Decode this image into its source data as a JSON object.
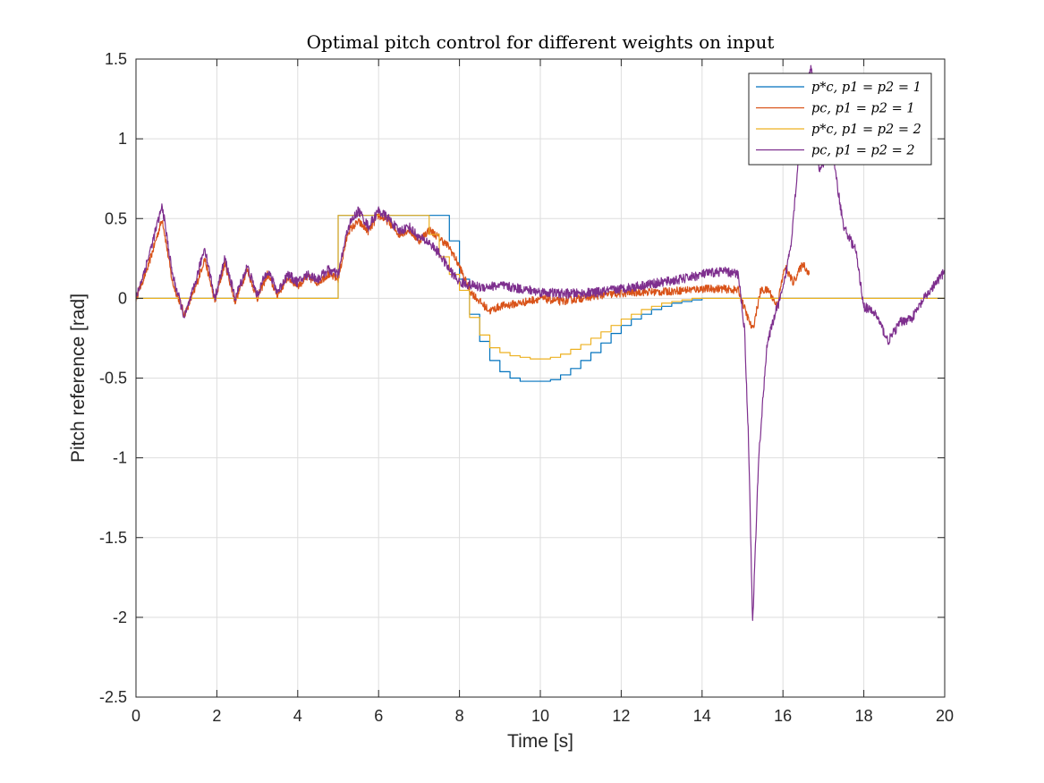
{
  "chart_data": {
    "type": "line",
    "title": "Optimal pitch control for different weights on input",
    "xlabel": "Time [s]",
    "ylabel": "Pitch reference [rad]",
    "xlim": [
      0,
      20
    ],
    "ylim": [
      -2.5,
      1.5
    ],
    "xticks": [
      0,
      2,
      4,
      6,
      8,
      10,
      12,
      14,
      16,
      18,
      20
    ],
    "yticks": [
      -2.5,
      -2,
      -1.5,
      -1,
      -0.5,
      0,
      0.5,
      1,
      1.5
    ],
    "grid": true,
    "legend_position": "top-right",
    "series": [
      {
        "name": "p*_c, p1 = p2 = 1",
        "legend_label": "p*c, p1 = p2 = 1",
        "color": "#0072BD",
        "step": true,
        "x": [
          0,
          5,
          5.25,
          5.5,
          5.75,
          6,
          6.25,
          6.5,
          6.75,
          7,
          7.25,
          7.5,
          7.75,
          8,
          8.25,
          8.5,
          8.75,
          9,
          9.25,
          9.5,
          9.75,
          10,
          10.25,
          10.5,
          10.75,
          11,
          11.25,
          11.5,
          11.75,
          12,
          12.25,
          12.5,
          12.75,
          13,
          13.25,
          13.5,
          13.75,
          14,
          14.25,
          14.5,
          14.75,
          15,
          15.25,
          16,
          17,
          18,
          19,
          20
        ],
        "y": [
          0,
          0.52,
          0.52,
          0.52,
          0.52,
          0.52,
          0.52,
          0.52,
          0.52,
          0.52,
          0.52,
          0.52,
          0.36,
          0.12,
          -0.1,
          -0.27,
          -0.39,
          -0.46,
          -0.5,
          -0.52,
          -0.52,
          -0.52,
          -0.51,
          -0.48,
          -0.44,
          -0.39,
          -0.34,
          -0.28,
          -0.22,
          -0.17,
          -0.13,
          -0.1,
          -0.07,
          -0.05,
          -0.03,
          -0.02,
          -0.01,
          0,
          0,
          0,
          0,
          0,
          0,
          0,
          0,
          0,
          0,
          0
        ]
      },
      {
        "name": "p_c, p1 = p2 = 1",
        "legend_label": "pc, p1 = p2 = 1",
        "color": "#D95319",
        "noise": 0.025,
        "x": [
          0,
          0.3,
          0.65,
          0.9,
          1.2,
          1.45,
          1.7,
          1.95,
          2.2,
          2.45,
          2.75,
          3.0,
          3.25,
          3.5,
          3.75,
          4.0,
          4.25,
          4.5,
          4.75,
          5.0,
          5.25,
          5.5,
          5.75,
          6.0,
          6.25,
          6.5,
          6.75,
          7.0,
          7.25,
          7.5,
          7.75,
          8.0,
          8.25,
          8.5,
          8.75,
          9.0,
          9.5,
          10.0,
          10.5,
          11.0,
          11.5,
          12.0,
          12.5,
          13.0,
          13.5,
          14.0,
          14.5,
          14.9,
          15.1,
          15.25,
          15.45,
          15.65,
          15.85,
          16.05,
          16.25,
          16.5,
          16.65
        ],
        "y": [
          0,
          0.2,
          0.5,
          0.1,
          -0.1,
          0.05,
          0.25,
          -0.02,
          0.22,
          -0.02,
          0.18,
          0.0,
          0.15,
          0.02,
          0.13,
          0.08,
          0.13,
          0.1,
          0.15,
          0.12,
          0.42,
          0.48,
          0.42,
          0.52,
          0.48,
          0.4,
          0.43,
          0.36,
          0.43,
          0.38,
          0.32,
          0.2,
          0.05,
          -0.02,
          -0.08,
          -0.05,
          -0.03,
          0.0,
          -0.02,
          0.0,
          0.02,
          0.03,
          0.04,
          0.04,
          0.05,
          0.06,
          0.06,
          0.05,
          -0.1,
          -0.2,
          0.05,
          0.05,
          -0.05,
          0.2,
          0.1,
          0.22,
          0.15
        ]
      },
      {
        "name": "p*_c, p1 = p2 = 2",
        "legend_label": "p*c, p1 = p2 = 2",
        "color": "#EDB120",
        "step": true,
        "x": [
          0,
          5,
          5.25,
          5.5,
          5.75,
          6,
          6.25,
          6.5,
          6.75,
          7,
          7.25,
          7.5,
          7.75,
          8,
          8.25,
          8.5,
          8.75,
          9,
          9.25,
          9.5,
          9.75,
          10,
          10.25,
          10.5,
          10.75,
          11,
          11.25,
          11.5,
          11.75,
          12,
          12.25,
          12.5,
          12.75,
          13,
          13.25,
          13.5,
          13.75,
          14,
          14.25,
          14.5,
          14.75,
          15,
          15.25,
          16,
          17,
          18,
          19,
          20
        ],
        "y": [
          0,
          0.52,
          0.52,
          0.52,
          0.52,
          0.52,
          0.52,
          0.52,
          0.52,
          0.52,
          0.4,
          0.26,
          0.15,
          0.05,
          -0.12,
          -0.23,
          -0.31,
          -0.34,
          -0.36,
          -0.37,
          -0.38,
          -0.38,
          -0.37,
          -0.35,
          -0.32,
          -0.29,
          -0.25,
          -0.21,
          -0.17,
          -0.13,
          -0.1,
          -0.07,
          -0.05,
          -0.03,
          -0.02,
          -0.01,
          0,
          0,
          0,
          0,
          0,
          0,
          0,
          0,
          0,
          0,
          0,
          0
        ]
      },
      {
        "name": "p_c, p1 = p2 = 2",
        "legend_label": "pc, p1 = p2 = 2",
        "color": "#7E2F8E",
        "noise": 0.03,
        "x": [
          0,
          0.3,
          0.65,
          0.9,
          1.2,
          1.45,
          1.7,
          1.95,
          2.2,
          2.45,
          2.75,
          3.0,
          3.25,
          3.5,
          3.75,
          4.0,
          4.25,
          4.5,
          4.75,
          5.0,
          5.25,
          5.5,
          5.75,
          6.0,
          6.25,
          6.5,
          6.75,
          7.0,
          7.25,
          7.5,
          7.75,
          8.0,
          8.5,
          9.0,
          9.5,
          10.0,
          10.5,
          11.0,
          11.5,
          12.0,
          12.5,
          13.0,
          13.5,
          14.0,
          14.5,
          14.9,
          15.05,
          15.15,
          15.25,
          15.4,
          15.6,
          15.8,
          16.0,
          16.2,
          16.5,
          16.7,
          16.9,
          17.2,
          17.5,
          17.8,
          18.0,
          18.3,
          18.6,
          18.9,
          19.2,
          19.5,
          19.8,
          20.0
        ],
        "y": [
          0,
          0.25,
          0.58,
          0.15,
          -0.12,
          0.08,
          0.32,
          0.0,
          0.25,
          0.0,
          0.2,
          0.02,
          0.18,
          0.04,
          0.15,
          0.1,
          0.15,
          0.12,
          0.18,
          0.15,
          0.45,
          0.55,
          0.45,
          0.55,
          0.5,
          0.42,
          0.45,
          0.38,
          0.35,
          0.28,
          0.18,
          0.1,
          0.07,
          0.08,
          0.06,
          0.04,
          0.03,
          0.03,
          0.04,
          0.06,
          0.08,
          0.1,
          0.12,
          0.15,
          0.17,
          0.15,
          -0.2,
          -0.9,
          -2.04,
          -1.0,
          -0.3,
          -0.1,
          0.05,
          0.35,
          1.2,
          1.45,
          0.8,
          0.95,
          0.45,
          0.3,
          -0.05,
          -0.1,
          -0.27,
          -0.15,
          -0.12,
          0.0,
          0.1,
          0.17
        ]
      }
    ]
  }
}
